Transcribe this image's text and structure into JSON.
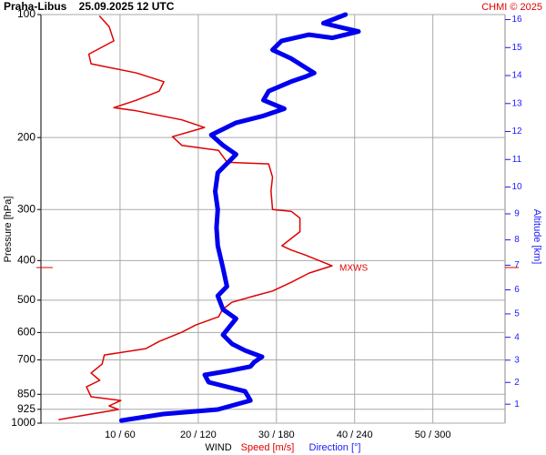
{
  "chart_data": {
    "type": "profile",
    "title": "Praha-Libus    25.09.2025 12 UTC",
    "credit": "CHMI © 2025",
    "y_label": "Pressure [hPa]",
    "y2_label": "Altitude [km]",
    "x_label": "WIND",
    "x_label_speed": "Speed [m/s]",
    "x_label_direction": "Direction [°]",
    "ylim": [
      1000,
      100
    ],
    "log_y": true,
    "yticks": [
      100,
      200,
      300,
      400,
      500,
      600,
      700,
      850,
      925,
      1000
    ],
    "y2ticks": [
      1,
      2,
      3,
      4,
      5,
      6,
      7,
      8,
      9,
      10,
      11,
      12,
      13,
      14,
      15,
      16
    ],
    "y2_color": "#1a1aff",
    "xlim": [
      0,
      59
    ],
    "x2lim": [
      0,
      354
    ],
    "xticks": [
      {
        "value": 10,
        "label": "10 / 60"
      },
      {
        "value": 20,
        "label": "20 / 120"
      },
      {
        "value": 30,
        "label": "30 / 180"
      },
      {
        "value": 40,
        "label": "40 / 240"
      },
      {
        "value": 50,
        "label": "50 / 300"
      }
    ],
    "grid": true,
    "max_wind": {
      "label": "MXWS",
      "pressure": 416
    },
    "series": [
      {
        "name": "Speed [m/s]",
        "color": "#e00000",
        "width": 1.5,
        "values": [
          2.2,
          6.3,
          9.8,
          8.6,
          10.1,
          6.3,
          5.7,
          7.4,
          6.3,
          7.7,
          8.0,
          13.3,
          15.0,
          17.9,
          19.7,
          22.6,
          23.1,
          24.3,
          27.2,
          29.5,
          31.9,
          34.2,
          37.1,
          35.3,
          33.6,
          31.9,
          30.7,
          31.9,
          33.0,
          33.0,
          31.9,
          29.5,
          29.3,
          29.5,
          29.0,
          23.7,
          22.6,
          17.9,
          16.7,
          20.8,
          17.9,
          12.1,
          9.2,
          12.1,
          15.0,
          15.6,
          12.1,
          6.3,
          6.0,
          9.2,
          8.6,
          7.4
        ],
        "pressure": [
          980,
          950,
          926,
          907,
          880,
          862,
          815,
          786,
          754,
          717,
          681,
          657,
          631,
          599,
          575,
          549,
          527,
          506,
          488,
          475,
          452,
          429,
          412,
          399,
          387,
          377,
          368,
          353,
          340,
          315,
          303,
          300,
          270,
          250,
          232,
          230,
          215,
          209,
          199,
          189,
          181,
          172,
          169,
          162,
          154,
          146,
          139,
          132,
          125,
          116,
          107,
          101
        ]
      },
      {
        "name": "Direction [°]",
        "color": "#0000ee",
        "width": 5,
        "axis": "x2",
        "values": [
          61,
          93,
          135,
          160,
          156,
          128,
          125,
          142,
          160,
          163,
          169,
          156,
          146,
          139,
          149,
          139,
          135,
          142,
          139,
          135,
          134,
          135,
          133,
          135,
          149,
          139,
          130,
          149,
          170,
          186,
          170,
          174,
          191,
          202,
          209,
          191,
          177,
          184,
          205,
          223,
          243,
          216,
          233
        ],
        "pressure": [
          985,
          950,
          926,
          880,
          836,
          794,
          762,
          746,
          727,
          709,
          688,
          664,
          640,
          608,
          555,
          527,
          488,
          463,
          418,
          368,
          332,
          300,
          271,
          244,
          220,
          209,
          197,
          184,
          177,
          170,
          162,
          154,
          146,
          142,
          139,
          128,
          122,
          116,
          112,
          114,
          110,
          105,
          100
        ]
      }
    ]
  }
}
